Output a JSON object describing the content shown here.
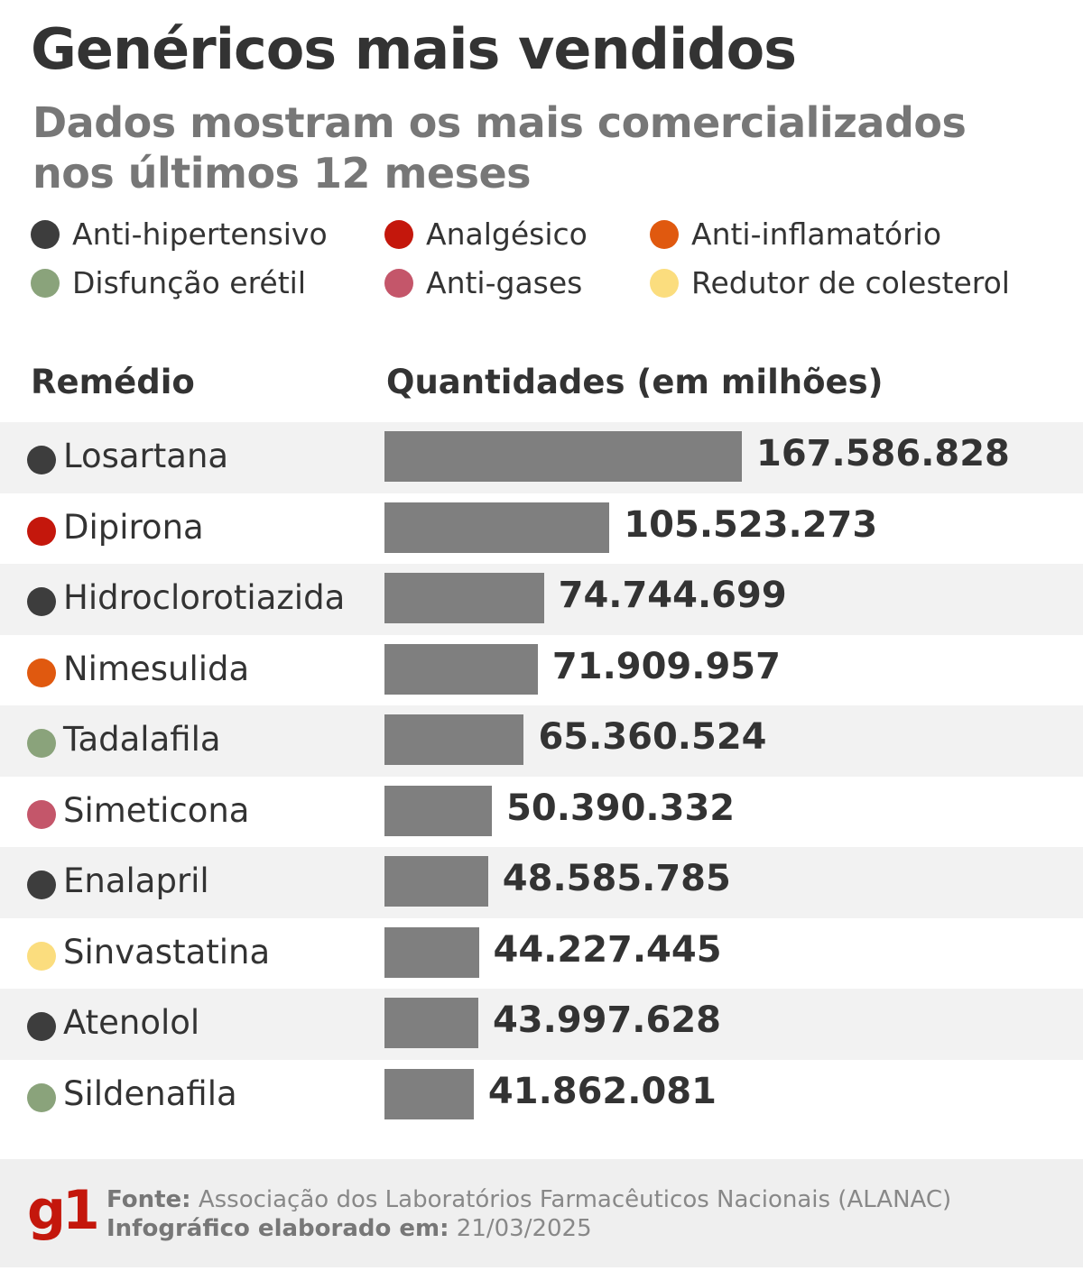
{
  "title": "Genéricos mais vendidos",
  "subtitle": "Dados mostram os mais comercializados nos últimos 12 meses",
  "legend": [
    {
      "label": "Anti-hipertensivo",
      "color": "#3d3d3d"
    },
    {
      "label": "Analgésico",
      "color": "#c4170c"
    },
    {
      "label": "Anti-inflamatório",
      "color": "#e0590f"
    },
    {
      "label": "Disfunção erétil",
      "color": "#8aa37b"
    },
    {
      "label": "Anti-gases",
      "color": "#c4566a"
    },
    {
      "label": "Redutor de colesterol",
      "color": "#fbdd7e"
    }
  ],
  "columns": {
    "name": "Remédio",
    "value": "Quantidades (em milhões)"
  },
  "chart_data": {
    "type": "bar",
    "orientation": "horizontal",
    "categories": [
      "Losartana",
      "Dipirona",
      "Hidroclorotiazida",
      "Nimesulida",
      "Tadalafila",
      "Simeticona",
      "Enalapril",
      "Sinvastatina",
      "Atenolol",
      "Sildenafila"
    ],
    "values": [
      167586828,
      105523273,
      74744699,
      71909957,
      65360524,
      50390332,
      48585785,
      44227445,
      43997628,
      41862081
    ],
    "value_labels": [
      "167.586.828",
      "105.523.273",
      "74.744.699",
      "71.909.957",
      "65.360.524",
      "50.390.332",
      "48.585.785",
      "44.227.445",
      "43.997.628",
      "41.862.081"
    ],
    "categories_class": [
      "Anti-hipertensivo",
      "Analgésico",
      "Anti-hipertensivo",
      "Anti-inflamatório",
      "Disfunção erétil",
      "Anti-gases",
      "Anti-hipertensivo",
      "Redutor de colesterol",
      "Anti-hipertensivo",
      "Disfunção erétil"
    ],
    "bar_color": "#7f7f7f"
  },
  "footer": {
    "logo": "g1",
    "source_label": "Fonte:",
    "source": "Associação dos Laboratórios Farmacêuticos Nacionais (ALANAC)",
    "date_label": "Infográfico elaborado em:",
    "date": "21/03/2025"
  }
}
